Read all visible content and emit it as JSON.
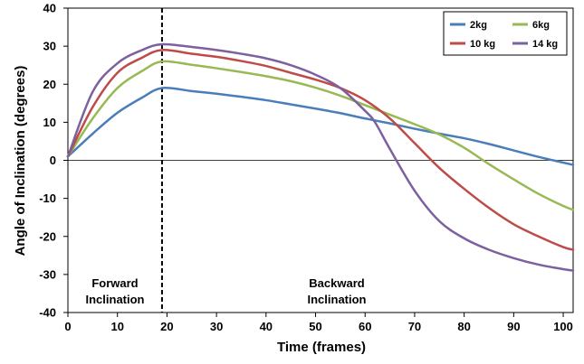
{
  "chart_data": {
    "type": "line",
    "title": "",
    "xlabel": "Time (frames)",
    "ylabel": "Angle of Inclination (degrees)",
    "xlim": [
      0,
      102
    ],
    "ylim": [
      -40,
      40
    ],
    "x_ticks": [
      0,
      10,
      20,
      30,
      40,
      50,
      60,
      70,
      80,
      90,
      100
    ],
    "y_ticks": [
      -40,
      -30,
      -20,
      -10,
      0,
      10,
      20,
      30,
      40
    ],
    "grid": false,
    "legend_position": "top-right",
    "divider": {
      "x": 19,
      "style": "dashed"
    },
    "annotations": [
      {
        "id": "forward",
        "lines": [
          "Forward",
          "Inclination"
        ]
      },
      {
        "id": "backward",
        "lines": [
          "Backward",
          "Inclination"
        ]
      }
    ],
    "series": [
      {
        "name": "2kg",
        "color": "#4a7ebb",
        "x": [
          0,
          5,
          10,
          15,
          19,
          25,
          30,
          35,
          40,
          45,
          50,
          55,
          60,
          65,
          70,
          75,
          80,
          85,
          90,
          95,
          100,
          102
        ],
        "y": [
          1,
          7,
          12.5,
          16.5,
          19,
          18.2,
          17.5,
          16.7,
          15.8,
          14.7,
          13.6,
          12.4,
          11,
          9.7,
          8.3,
          7,
          5.8,
          4.3,
          2.6,
          0.9,
          -0.6,
          -1.2
        ]
      },
      {
        "name": "6kg",
        "color": "#98b954",
        "x": [
          0,
          5,
          10,
          15,
          19,
          25,
          30,
          35,
          40,
          45,
          50,
          55,
          60,
          65,
          70,
          75,
          80,
          85,
          90,
          95,
          100,
          102
        ],
        "y": [
          1,
          11,
          19,
          23.5,
          26,
          25.1,
          24.2,
          23.2,
          22.1,
          20.8,
          19.1,
          17,
          14.5,
          12,
          9.5,
          6.8,
          3.3,
          -1,
          -5,
          -8.8,
          -12,
          -13
        ]
      },
      {
        "name": "10 kg",
        "color": "#be4b48",
        "x": [
          0,
          5,
          10,
          15,
          19,
          25,
          30,
          35,
          40,
          45,
          50,
          55,
          60,
          65,
          70,
          75,
          80,
          85,
          90,
          95,
          100,
          102
        ],
        "y": [
          1,
          14,
          23,
          27,
          29,
          28,
          27.2,
          26.1,
          24.8,
          23,
          21.2,
          19,
          15.8,
          11,
          4.5,
          -2,
          -7.5,
          -12.5,
          -16.8,
          -20,
          -22.8,
          -23.5
        ]
      },
      {
        "name": "14 kg",
        "color": "#7d60a0",
        "x": [
          0,
          5,
          10,
          15,
          19,
          25,
          30,
          35,
          40,
          45,
          50,
          55,
          60,
          62,
          65,
          70,
          75,
          80,
          85,
          90,
          95,
          100,
          102
        ],
        "y": [
          1,
          18,
          25.5,
          29,
          30.5,
          29.8,
          29,
          28,
          26.8,
          25,
          22.5,
          19,
          13,
          10,
          3,
          -8,
          -16,
          -20.5,
          -23.5,
          -25.7,
          -27.4,
          -28.6,
          -29
        ]
      }
    ]
  }
}
